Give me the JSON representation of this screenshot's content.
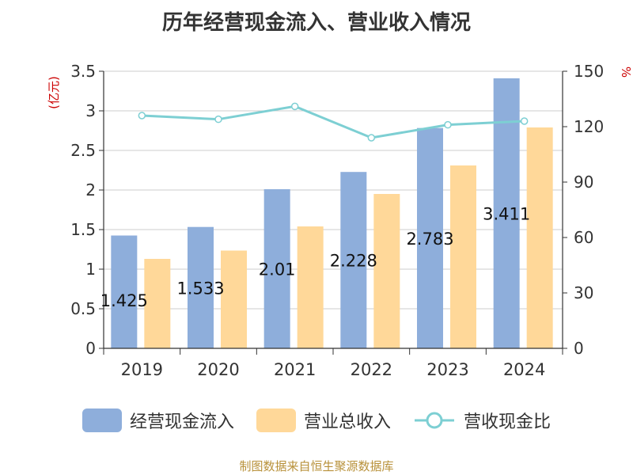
{
  "title": "历年经营现金流入、营业收入情况",
  "left_axis_unit": "(亿元)",
  "right_axis_unit": "%",
  "footer": "制图数据来自恒生聚源数据库",
  "colors": {
    "cash_inflow": "#8eaedb",
    "revenue": "#ffd899",
    "ratio": "#7dcfd3",
    "left_unit": "#cc0000",
    "right_unit": "#cc0000"
  },
  "chart_data": {
    "type": "bar",
    "categories": [
      "2019",
      "2020",
      "2021",
      "2022",
      "2023",
      "2024"
    ],
    "series": [
      {
        "name": "经营现金流入",
        "axis": "left",
        "type": "bar",
        "values": [
          1.425,
          1.533,
          2.01,
          2.228,
          2.783,
          3.411
        ],
        "data_labels": [
          "1.425",
          "1.533",
          "2.01",
          "2.228",
          "2.783",
          "3.411"
        ]
      },
      {
        "name": "营业总收入",
        "axis": "left",
        "type": "bar",
        "values": [
          1.13,
          1.235,
          1.54,
          1.95,
          2.31,
          2.79
        ]
      },
      {
        "name": "营收现金比",
        "axis": "right",
        "type": "line",
        "values": [
          126,
          124,
          131,
          114,
          121,
          123
        ]
      }
    ],
    "left_axis": {
      "ylim": [
        0,
        3.5
      ],
      "ticks": [
        "0",
        "0.5",
        "1",
        "1.5",
        "2",
        "2.5",
        "3",
        "3.5"
      ]
    },
    "right_axis": {
      "ylim": [
        0,
        150
      ],
      "ticks": [
        "0",
        "30",
        "60",
        "90",
        "120",
        "150"
      ]
    },
    "grid": true,
    "legend_position": "bottom"
  }
}
